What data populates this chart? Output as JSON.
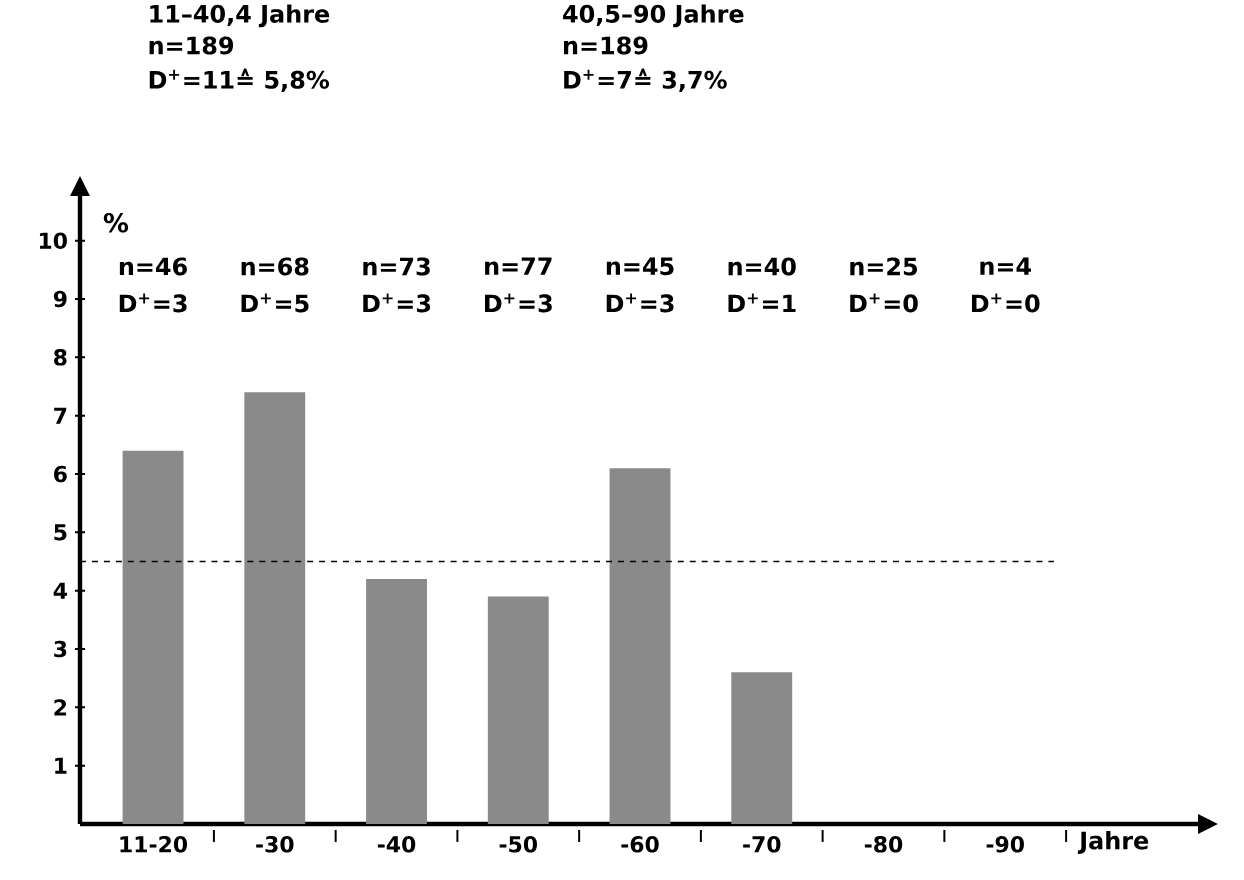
{
  "chart_data": {
    "type": "bar",
    "categories": [
      "11-20",
      "-30",
      "-40",
      "-50",
      "-60",
      "-70",
      "-80",
      "-90"
    ],
    "values": [
      6.4,
      7.4,
      4.2,
      3.9,
      6.1,
      2.6,
      0,
      0
    ],
    "color": "#8a8a8a",
    "xlabel": "Jahre",
    "ylabel": "%",
    "ylim": [
      0,
      10.8
    ],
    "yticks": [
      1,
      2,
      3,
      4,
      5,
      6,
      7,
      8,
      9,
      10
    ],
    "grid": false,
    "ref_lines": [
      {
        "axis": "y",
        "value": 4.5,
        "line_style": "dashed"
      }
    ],
    "annotations": [
      "11–40,4 Jahre",
      "n=189",
      "D$^{+}$=11≙ 5,8%",
      "40,5–90 Jahre",
      "n=189",
      "D$^{+}$=7≙ 3,7%",
      "n=46",
      "D$^{+}$=3",
      "n=68",
      "D$^{+}$=5",
      "n=73",
      "D$^{+}$=3",
      "n=77",
      "D$^{+}$=3",
      "n=45",
      "D$^{+}$=3",
      "n=40",
      "D$^{+}$=1",
      "n=25",
      "D$^{+}$=0",
      "n=4",
      "D$^{+}$=0"
    ]
  }
}
